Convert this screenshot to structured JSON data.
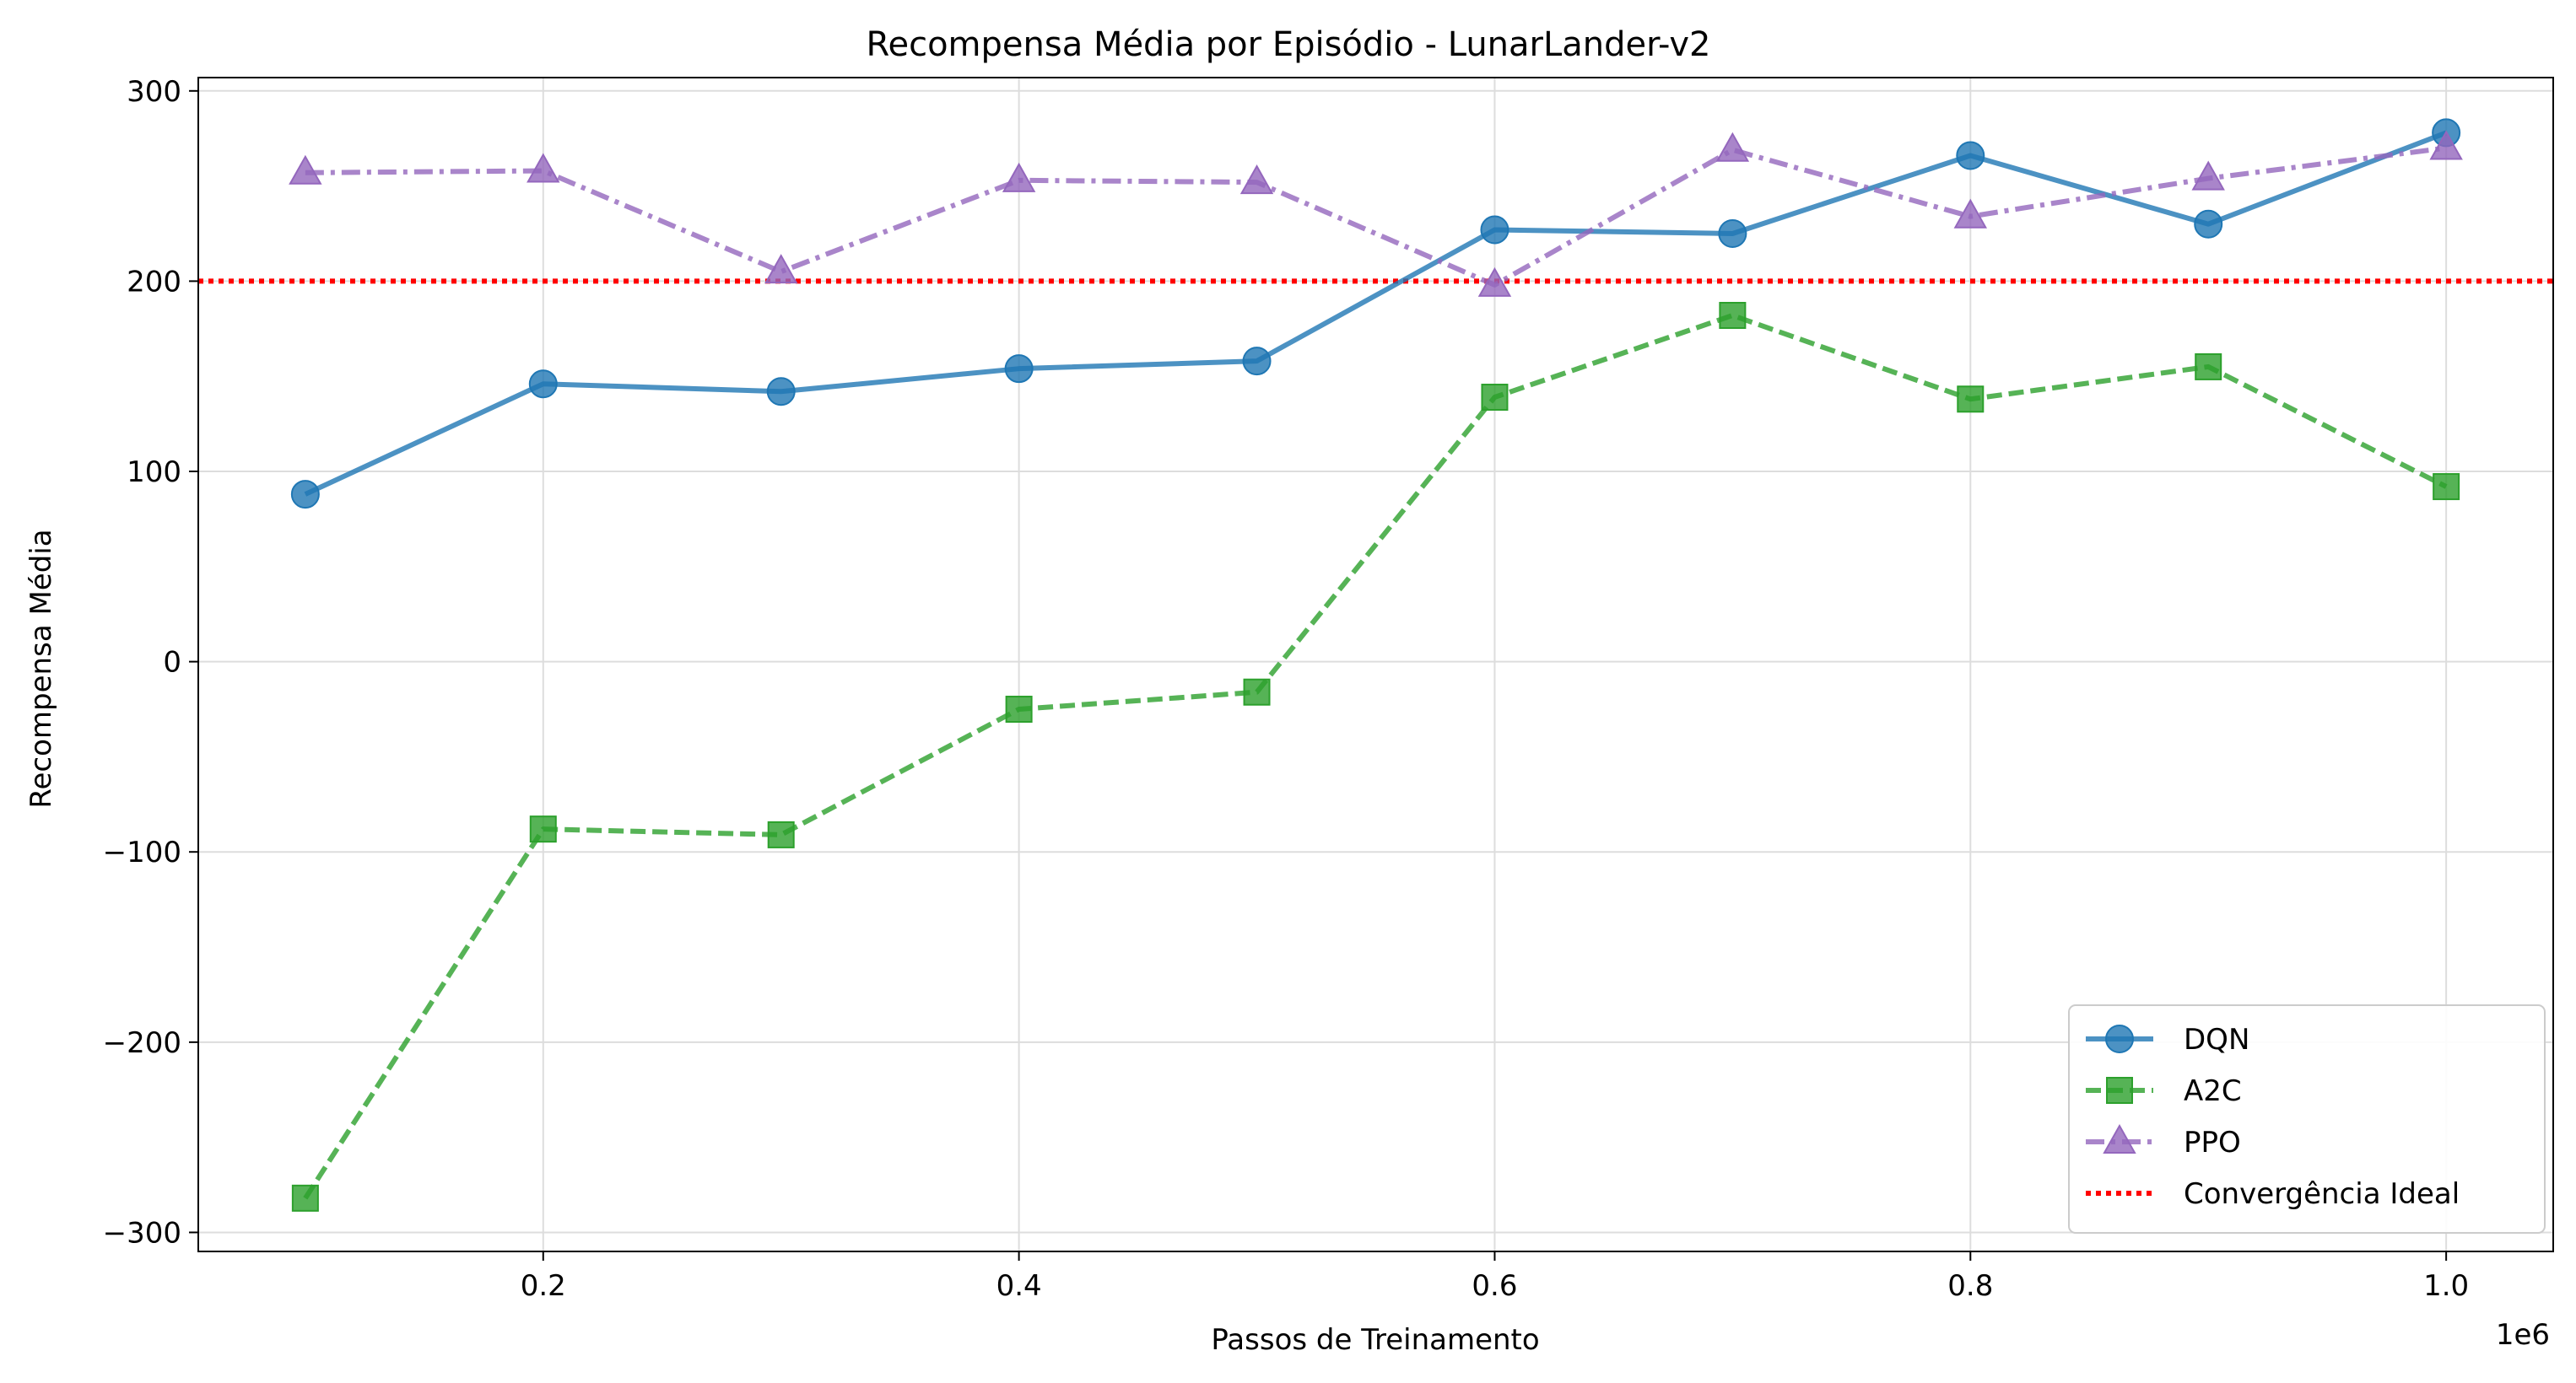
{
  "chart_data": {
    "type": "line",
    "title": "Recompensa Média por Episódio - LunarLander-v2",
    "xlabel": "Passos de Treinamento",
    "ylabel": "Recompensa Média",
    "x_offset_label": "1e6",
    "x": [
      100000,
      200000,
      300000,
      400000,
      500000,
      600000,
      700000,
      800000,
      900000,
      1000000
    ],
    "xlim": [
      55000,
      1045000
    ],
    "ylim": [
      -310,
      307
    ],
    "x_ticks": [
      200000,
      400000,
      600000,
      800000,
      1000000
    ],
    "x_tick_labels": [
      "0.2",
      "0.4",
      "0.6",
      "0.8",
      "1.0"
    ],
    "y_ticks": [
      -300,
      -200,
      -100,
      0,
      100,
      200,
      300
    ],
    "y_tick_labels": [
      "−300",
      "−200",
      "−100",
      "0",
      "100",
      "200",
      "300"
    ],
    "grid": true,
    "legend_position": "lower right",
    "series": [
      {
        "name": "DQN",
        "values": [
          88,
          146,
          142,
          154,
          158,
          227,
          225,
          266,
          230,
          278
        ],
        "color": "#1f77b4",
        "marker": "circle",
        "linestyle": "solid"
      },
      {
        "name": "A2C",
        "values": [
          -282,
          -88,
          -91,
          -25,
          -16,
          139,
          182,
          138,
          155,
          92
        ],
        "color": "#2ca02c",
        "marker": "square",
        "linestyle": "dashed"
      },
      {
        "name": "PPO",
        "values": [
          257,
          258,
          205,
          253,
          252,
          198,
          269,
          234,
          254,
          270
        ],
        "color": "#9467bd",
        "marker": "triangle",
        "linestyle": "dashdot"
      }
    ],
    "reference_lines": [
      {
        "name": "Convergência Ideal",
        "y": 200,
        "color": "#ff0000",
        "linestyle": "dotted"
      }
    ]
  }
}
